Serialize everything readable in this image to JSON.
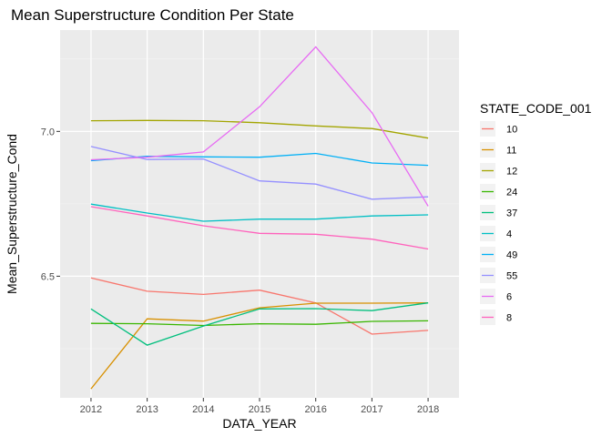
{
  "chart_data": {
    "type": "line",
    "title": "Mean Superstructure Condition Per State",
    "xlabel": "DATA_YEAR",
    "ylabel": "Mean_Superstructure_Cond",
    "x": [
      2012,
      2013,
      2014,
      2015,
      2016,
      2017,
      2018
    ],
    "xticks": [
      "2012",
      "2013",
      "2014",
      "2015",
      "2016",
      "2017",
      "2018"
    ],
    "yticks": [
      6.5,
      7.0
    ],
    "ytick_labels": [
      "6.5",
      "7.0"
    ],
    "xlim": [
      2011.45,
      2018.55
    ],
    "ylim": [
      6.08,
      7.35
    ],
    "grid": true,
    "legend": {
      "title": "STATE_CODE_001",
      "position": "right"
    },
    "series": [
      {
        "name": "10",
        "color": "#F8766D",
        "values": [
          6.494,
          6.448,
          6.437,
          6.452,
          6.408,
          6.3,
          6.313
        ]
      },
      {
        "name": "11",
        "color": "#D89000",
        "values": [
          6.111,
          6.353,
          6.345,
          6.391,
          6.407,
          6.407,
          6.408
        ]
      },
      {
        "name": "12",
        "color": "#A3A500",
        "values": [
          7.037,
          7.038,
          7.037,
          7.03,
          7.019,
          7.01,
          6.977
        ]
      },
      {
        "name": "24",
        "color": "#39B600",
        "values": [
          6.337,
          6.336,
          6.33,
          6.336,
          6.334,
          6.344,
          6.346
        ]
      },
      {
        "name": "37",
        "color": "#00BF7D",
        "values": [
          6.387,
          6.262,
          6.328,
          6.387,
          6.388,
          6.381,
          6.408
        ]
      },
      {
        "name": "4",
        "color": "#00BFC4",
        "values": [
          6.749,
          6.718,
          6.69,
          6.697,
          6.697,
          6.708,
          6.712
        ]
      },
      {
        "name": "49",
        "color": "#00B0F6",
        "values": [
          6.899,
          6.914,
          6.912,
          6.911,
          6.924,
          6.891,
          6.883
        ]
      },
      {
        "name": "55",
        "color": "#9590FF",
        "values": [
          6.948,
          6.903,
          6.905,
          6.829,
          6.818,
          6.766,
          6.774
        ]
      },
      {
        "name": "6",
        "color": "#E76BF3",
        "values": [
          6.902,
          6.911,
          6.929,
          7.085,
          7.292,
          7.065,
          6.742
        ]
      },
      {
        "name": "8",
        "color": "#FF62BC",
        "values": [
          6.74,
          6.708,
          6.674,
          6.648,
          6.645,
          6.628,
          6.594
        ]
      }
    ]
  }
}
